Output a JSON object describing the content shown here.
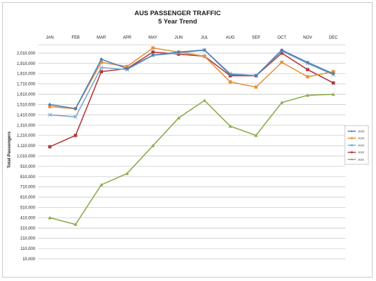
{
  "chart_data": {
    "type": "line",
    "title": "AUS PASSENGER TRAFFIC",
    "subtitle": "5 Year Trend",
    "xlabel": "",
    "ylabel": "Total Passengers",
    "categories": [
      "JAN",
      "FEB",
      "MAR",
      "APR",
      "MAY",
      "JUN",
      "JUL",
      "AUG",
      "SEP",
      "OCT",
      "NOV",
      "DEC"
    ],
    "ylim": [
      10000,
      2090000
    ],
    "yticks": [
      "2,010,000",
      "1,910,000",
      "1,810,000",
      "1,710,000",
      "1,610,000",
      "1,510,000",
      "1,410,000",
      "1,310,000",
      "1,210,000",
      "1,110,000",
      "1,010,000",
      "910,000",
      "810,000",
      "710,000",
      "610,000",
      "510,000",
      "410,000",
      "310,000",
      "210,000",
      "110,000",
      "10,000"
    ],
    "grid": true,
    "legend_position": "right",
    "series": [
      {
        "name": "2025",
        "color": "#4a7fb5",
        "marker": "diamond",
        "values": [
          1510000,
          1470000,
          1950000,
          1860000,
          1990000,
          2020000,
          2040000,
          1800000,
          1790000,
          2040000,
          1920000,
          1810000
        ]
      },
      {
        "name": "2024",
        "color": "#e6913d",
        "marker": "square",
        "values": [
          1490000,
          1470000,
          1920000,
          1880000,
          2060000,
          2020000,
          1980000,
          1730000,
          1680000,
          1920000,
          1780000,
          1830000
        ]
      },
      {
        "name": "2023",
        "color": "#7fa6cc",
        "marker": "cross",
        "values": [
          1410000,
          1390000,
          1870000,
          1850000,
          1990000,
          2010000,
          2040000,
          1810000,
          1790000,
          2030000,
          1910000,
          1800000
        ]
      },
      {
        "name": "2022",
        "color": "#b33a3a",
        "marker": "square",
        "values": [
          1100000,
          1210000,
          1830000,
          1860000,
          2020000,
          2000000,
          1980000,
          1790000,
          1790000,
          2010000,
          1850000,
          1720000
        ]
      },
      {
        "name": "2021",
        "color": "#8aab4d",
        "marker": "triangle",
        "values": [
          410000,
          345000,
          730000,
          840000,
          1110000,
          1380000,
          1550000,
          1300000,
          1210000,
          1530000,
          1600000,
          1610000
        ]
      }
    ]
  }
}
